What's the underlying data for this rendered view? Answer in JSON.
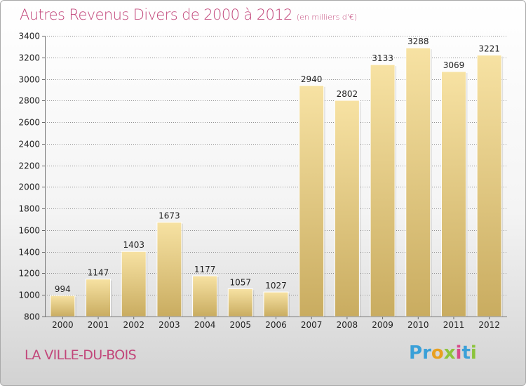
{
  "title": "Autres Revenus Divers de 2000 à 2012",
  "subtitle": "(en milliers d'€)",
  "location": "LA VILLE-DU-BOIS",
  "logo": {
    "text": "Proxiti",
    "letters": [
      {
        "ch": "P",
        "color": "#3aa0d8"
      },
      {
        "ch": "r",
        "color": "#3aa0d8"
      },
      {
        "ch": "o",
        "color": "#e8a020"
      },
      {
        "ch": "x",
        "color": "#8cc43c"
      },
      {
        "ch": "i",
        "color": "#d84a8a"
      },
      {
        "ch": "t",
        "color": "#3aa0d8"
      },
      {
        "ch": "i",
        "color": "#8cc43c"
      }
    ]
  },
  "colors": {
    "accent": "#c2467a",
    "bar_top": "#f7e2a3",
    "bar_bottom": "#c9ac60",
    "grid": "#8f8f8f"
  },
  "chart_data": {
    "type": "bar",
    "categories": [
      "2000",
      "2001",
      "2002",
      "2003",
      "2004",
      "2005",
      "2006",
      "2007",
      "2008",
      "2009",
      "2010",
      "2011",
      "2012"
    ],
    "values": [
      994,
      1147,
      1403,
      1673,
      1177,
      1057,
      1027,
      2940,
      2802,
      3133,
      3288,
      3069,
      3221
    ],
    "ylim": [
      800,
      3400
    ],
    "yticks": [
      800,
      1000,
      1200,
      1400,
      1600,
      1800,
      2000,
      2200,
      2400,
      2600,
      2800,
      3000,
      3200,
      3400
    ],
    "grid": true
  }
}
